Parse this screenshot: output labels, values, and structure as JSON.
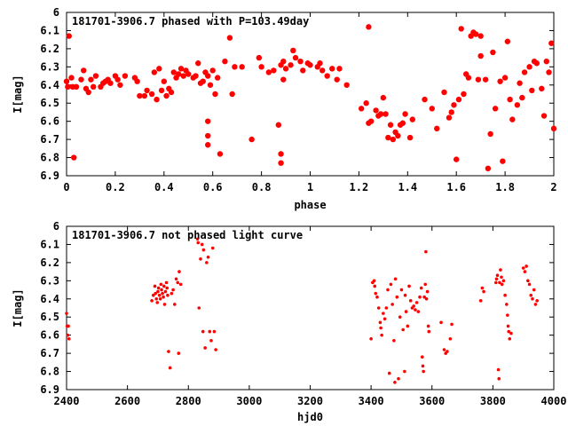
{
  "chart_data": [
    {
      "type": "scatter",
      "title": "181701-3906.7 phased with P=103.49day",
      "xlabel": "phase",
      "ylabel": "I[mag]",
      "xlim": [
        0,
        2
      ],
      "ylim": [
        6.9,
        6.0
      ],
      "y_reversed": true,
      "grid": false,
      "marker": "filled-circle",
      "color": "#ff0000",
      "x_ticks": [
        0,
        0.2,
        0.4,
        0.6,
        0.8,
        1,
        1.2,
        1.4,
        1.6,
        1.8,
        2
      ],
      "x_tick_labels": [
        "0",
        "0.2",
        "0.4",
        "0.6",
        "0.8",
        "1",
        "1.2",
        "1.4",
        "1.6",
        "1.8",
        "2"
      ],
      "y_ticks": [
        6,
        6.1,
        6.2,
        6.3,
        6.4,
        6.5,
        6.6,
        6.7,
        6.8,
        6.9
      ],
      "y_tick_labels": [
        "6",
        "6.1",
        "6.2",
        "6.3",
        "6.4",
        "6.5",
        "6.6",
        "6.7",
        "6.8",
        "6.9"
      ],
      "points": [
        [
          0.0,
          6.38
        ],
        [
          0.005,
          6.41
        ],
        [
          0.01,
          6.13
        ],
        [
          0.02,
          6.36
        ],
        [
          0.025,
          6.41
        ],
        [
          0.03,
          6.8
        ],
        [
          0.04,
          6.41
        ],
        [
          0.06,
          6.37
        ],
        [
          0.07,
          6.32
        ],
        [
          0.08,
          6.42
        ],
        [
          0.09,
          6.44
        ],
        [
          0.1,
          6.37
        ],
        [
          0.11,
          6.41
        ],
        [
          0.12,
          6.35
        ],
        [
          0.14,
          6.41
        ],
        [
          0.15,
          6.39
        ],
        [
          0.16,
          6.38
        ],
        [
          0.17,
          6.37
        ],
        [
          0.18,
          6.39
        ],
        [
          0.2,
          6.35
        ],
        [
          0.21,
          6.37
        ],
        [
          0.22,
          6.4
        ],
        [
          0.24,
          6.35
        ],
        [
          0.28,
          6.36
        ],
        [
          0.29,
          6.38
        ],
        [
          0.3,
          6.46
        ],
        [
          0.32,
          6.46
        ],
        [
          0.33,
          6.43
        ],
        [
          0.35,
          6.45
        ],
        [
          0.36,
          6.33
        ],
        [
          0.37,
          6.48
        ],
        [
          0.38,
          6.31
        ],
        [
          0.39,
          6.43
        ],
        [
          0.4,
          6.38
        ],
        [
          0.41,
          6.46
        ],
        [
          0.42,
          6.42
        ],
        [
          0.43,
          6.44
        ],
        [
          0.44,
          6.33
        ],
        [
          0.45,
          6.36
        ],
        [
          0.46,
          6.34
        ],
        [
          0.47,
          6.31
        ],
        [
          0.48,
          6.35
        ],
        [
          0.49,
          6.32
        ],
        [
          0.5,
          6.34
        ],
        [
          0.52,
          6.36
        ],
        [
          0.53,
          6.35
        ],
        [
          0.54,
          6.28
        ],
        [
          0.55,
          6.39
        ],
        [
          0.56,
          6.38
        ],
        [
          0.57,
          6.33
        ],
        [
          0.58,
          6.35
        ],
        [
          0.58,
          6.6
        ],
        [
          0.58,
          6.68
        ],
        [
          0.58,
          6.73
        ],
        [
          0.59,
          6.4
        ],
        [
          0.6,
          6.32
        ],
        [
          0.61,
          6.45
        ],
        [
          0.62,
          6.36
        ],
        [
          0.63,
          6.78
        ],
        [
          0.65,
          6.27
        ],
        [
          0.67,
          6.14
        ],
        [
          0.68,
          6.45
        ],
        [
          0.69,
          6.3
        ],
        [
          0.72,
          6.3
        ],
        [
          0.76,
          6.7
        ],
        [
          0.79,
          6.25
        ],
        [
          0.8,
          6.3
        ],
        [
          0.83,
          6.33
        ],
        [
          0.85,
          6.32
        ],
        [
          0.87,
          6.62
        ],
        [
          0.88,
          6.29
        ],
        [
          0.89,
          6.27
        ],
        [
          0.9,
          6.31
        ],
        [
          0.88,
          6.78
        ],
        [
          0.88,
          6.83
        ],
        [
          0.89,
          6.37
        ],
        [
          0.92,
          6.29
        ],
        [
          0.93,
          6.21
        ],
        [
          0.94,
          6.25
        ],
        [
          0.96,
          6.27
        ],
        [
          0.97,
          6.32
        ],
        [
          0.99,
          6.28
        ],
        [
          1.0,
          6.29
        ],
        [
          1.03,
          6.3
        ],
        [
          1.04,
          6.28
        ],
        [
          1.05,
          6.32
        ],
        [
          1.07,
          6.35
        ],
        [
          1.09,
          6.31
        ],
        [
          1.11,
          6.37
        ],
        [
          1.12,
          6.31
        ],
        [
          1.15,
          6.4
        ],
        [
          1.21,
          6.53
        ],
        [
          1.23,
          6.5
        ],
        [
          1.24,
          6.08
        ],
        [
          1.24,
          6.61
        ],
        [
          1.25,
          6.6
        ],
        [
          1.27,
          6.54
        ],
        [
          1.28,
          6.57
        ],
        [
          1.29,
          6.56
        ],
        [
          1.3,
          6.47
        ],
        [
          1.31,
          6.56
        ],
        [
          1.32,
          6.69
        ],
        [
          1.33,
          6.62
        ],
        [
          1.34,
          6.7
        ],
        [
          1.35,
          6.66
        ],
        [
          1.36,
          6.68
        ],
        [
          1.37,
          6.62
        ],
        [
          1.38,
          6.61
        ],
        [
          1.39,
          6.56
        ],
        [
          1.41,
          6.69
        ],
        [
          1.42,
          6.59
        ],
        [
          1.47,
          6.48
        ],
        [
          1.5,
          6.53
        ],
        [
          1.52,
          6.64
        ],
        [
          1.55,
          6.44
        ],
        [
          1.57,
          6.58
        ],
        [
          1.58,
          6.55
        ],
        [
          1.59,
          6.51
        ],
        [
          1.6,
          6.81
        ],
        [
          1.61,
          6.48
        ],
        [
          1.62,
          6.09
        ],
        [
          1.63,
          6.45
        ],
        [
          1.64,
          6.34
        ],
        [
          1.65,
          6.36
        ],
        [
          1.66,
          6.13
        ],
        [
          1.67,
          6.11
        ],
        [
          1.68,
          6.12
        ],
        [
          1.69,
          6.37
        ],
        [
          1.7,
          6.24
        ],
        [
          1.7,
          6.13
        ],
        [
          1.72,
          6.37
        ],
        [
          1.73,
          6.86
        ],
        [
          1.74,
          6.67
        ],
        [
          1.75,
          6.22
        ],
        [
          1.76,
          6.53
        ],
        [
          1.78,
          6.38
        ],
        [
          1.79,
          6.82
        ],
        [
          1.8,
          6.36
        ],
        [
          1.81,
          6.16
        ],
        [
          1.82,
          6.48
        ],
        [
          1.83,
          6.59
        ],
        [
          1.85,
          6.51
        ],
        [
          1.86,
          6.39
        ],
        [
          1.87,
          6.47
        ],
        [
          1.88,
          6.33
        ],
        [
          1.9,
          6.3
        ],
        [
          1.91,
          6.43
        ],
        [
          1.92,
          6.27
        ],
        [
          1.93,
          6.28
        ],
        [
          1.95,
          6.42
        ],
        [
          1.96,
          6.57
        ],
        [
          1.97,
          6.27
        ],
        [
          1.98,
          6.33
        ],
        [
          1.99,
          6.17
        ],
        [
          2.0,
          6.64
        ]
      ]
    },
    {
      "type": "scatter",
      "title": "181701-3906.7 not phased light curve",
      "xlabel": "hjd0",
      "ylabel": "I[mag]",
      "xlim": [
        2400,
        4000
      ],
      "ylim": [
        6.9,
        6.0
      ],
      "y_reversed": true,
      "grid": false,
      "marker": "small-filled-circle",
      "color": "#ff0000",
      "x_ticks": [
        2400,
        2600,
        2800,
        3000,
        3200,
        3400,
        3600,
        3800,
        4000
      ],
      "x_tick_labels": [
        "2400",
        "2600",
        "2800",
        "3000",
        "3200",
        "3400",
        "3600",
        "3800",
        "4000"
      ],
      "y_ticks": [
        6,
        6.1,
        6.2,
        6.3,
        6.4,
        6.5,
        6.6,
        6.7,
        6.8,
        6.9
      ],
      "y_tick_labels": [
        "6",
        "6.1",
        "6.2",
        "6.3",
        "6.4",
        "6.5",
        "6.6",
        "6.7",
        "6.8",
        "6.9"
      ],
      "points": [
        [
          2400,
          6.48
        ],
        [
          2402,
          6.55
        ],
        [
          2404,
          6.6
        ],
        [
          2406,
          6.55
        ],
        [
          2408,
          6.62
        ],
        [
          2680,
          6.41
        ],
        [
          2685,
          6.38
        ],
        [
          2690,
          6.33
        ],
        [
          2692,
          6.37
        ],
        [
          2695,
          6.4
        ],
        [
          2698,
          6.42
        ],
        [
          2700,
          6.36
        ],
        [
          2702,
          6.34
        ],
        [
          2705,
          6.38
        ],
        [
          2708,
          6.4
        ],
        [
          2710,
          6.32
        ],
        [
          2712,
          6.35
        ],
        [
          2715,
          6.37
        ],
        [
          2718,
          6.39
        ],
        [
          2720,
          6.33
        ],
        [
          2722,
          6.43
        ],
        [
          2725,
          6.36
        ],
        [
          2728,
          6.31
        ],
        [
          2730,
          6.34
        ],
        [
          2732,
          6.38
        ],
        [
          2735,
          6.69
        ],
        [
          2740,
          6.78
        ],
        [
          2745,
          6.37
        ],
        [
          2750,
          6.35
        ],
        [
          2755,
          6.43
        ],
        [
          2760,
          6.29
        ],
        [
          2765,
          6.31
        ],
        [
          2768,
          6.7
        ],
        [
          2770,
          6.25
        ],
        [
          2775,
          6.32
        ],
        [
          2830,
          6.07
        ],
        [
          2832,
          6.09
        ],
        [
          2835,
          6.45
        ],
        [
          2840,
          6.18
        ],
        [
          2845,
          6.1
        ],
        [
          2848,
          6.58
        ],
        [
          2850,
          6.13
        ],
        [
          2855,
          6.67
        ],
        [
          2860,
          6.2
        ],
        [
          2865,
          6.17
        ],
        [
          2870,
          6.58
        ],
        [
          2875,
          6.63
        ],
        [
          2880,
          6.12
        ],
        [
          2885,
          6.58
        ],
        [
          2890,
          6.68
        ],
        [
          3400,
          6.62
        ],
        [
          3405,
          6.31
        ],
        [
          3410,
          6.3
        ],
        [
          3412,
          6.33
        ],
        [
          3415,
          6.37
        ],
        [
          3420,
          6.39
        ],
        [
          3425,
          6.45
        ],
        [
          3430,
          6.53
        ],
        [
          3432,
          6.56
        ],
        [
          3435,
          6.6
        ],
        [
          3440,
          6.48
        ],
        [
          3445,
          6.51
        ],
        [
          3450,
          6.45
        ],
        [
          3455,
          6.35
        ],
        [
          3460,
          6.81
        ],
        [
          3465,
          6.32
        ],
        [
          3470,
          6.43
        ],
        [
          3475,
          6.63
        ],
        [
          3478,
          6.86
        ],
        [
          3480,
          6.29
        ],
        [
          3485,
          6.39
        ],
        [
          3490,
          6.84
        ],
        [
          3495,
          6.5
        ],
        [
          3500,
          6.35
        ],
        [
          3505,
          6.57
        ],
        [
          3510,
          6.8
        ],
        [
          3512,
          6.38
        ],
        [
          3515,
          6.47
        ],
        [
          3520,
          6.55
        ],
        [
          3525,
          6.33
        ],
        [
          3530,
          6.41
        ],
        [
          3535,
          6.45
        ],
        [
          3540,
          6.44
        ],
        [
          3545,
          6.46
        ],
        [
          3550,
          6.42
        ],
        [
          3555,
          6.47
        ],
        [
          3560,
          6.39
        ],
        [
          3565,
          6.34
        ],
        [
          3568,
          6.72
        ],
        [
          3570,
          6.77
        ],
        [
          3572,
          6.8
        ],
        [
          3575,
          6.39
        ],
        [
          3578,
          6.32
        ],
        [
          3580,
          6.14
        ],
        [
          3582,
          6.4
        ],
        [
          3585,
          6.36
        ],
        [
          3588,
          6.55
        ],
        [
          3590,
          6.58
        ],
        [
          3630,
          6.53
        ],
        [
          3640,
          6.68
        ],
        [
          3645,
          6.7
        ],
        [
          3650,
          6.69
        ],
        [
          3660,
          6.62
        ],
        [
          3665,
          6.54
        ],
        [
          3760,
          6.41
        ],
        [
          3765,
          6.34
        ],
        [
          3770,
          6.36
        ],
        [
          3810,
          6.31
        ],
        [
          3812,
          6.29
        ],
        [
          3815,
          6.27
        ],
        [
          3818,
          6.79
        ],
        [
          3820,
          6.84
        ],
        [
          3822,
          6.31
        ],
        [
          3825,
          6.24
        ],
        [
          3828,
          6.28
        ],
        [
          3830,
          6.32
        ],
        [
          3835,
          6.3
        ],
        [
          3840,
          6.38
        ],
        [
          3845,
          6.43
        ],
        [
          3848,
          6.49
        ],
        [
          3850,
          6.55
        ],
        [
          3852,
          6.58
        ],
        [
          3855,
          6.62
        ],
        [
          3860,
          6.59
        ],
        [
          3900,
          6.23
        ],
        [
          3905,
          6.25
        ],
        [
          3910,
          6.22
        ],
        [
          3915,
          6.3
        ],
        [
          3920,
          6.32
        ],
        [
          3925,
          6.38
        ],
        [
          3930,
          6.4
        ],
        [
          3935,
          6.35
        ],
        [
          3940,
          6.43
        ],
        [
          3945,
          6.41
        ]
      ]
    }
  ]
}
